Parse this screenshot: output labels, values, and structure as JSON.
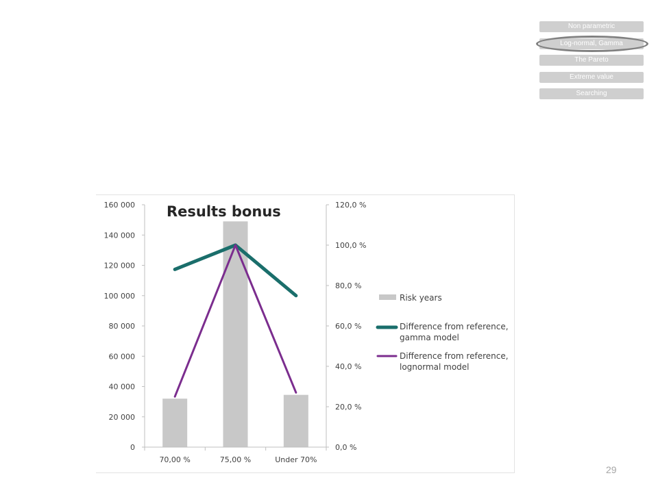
{
  "nav": {
    "items": [
      {
        "label": "Non parametric",
        "active": false
      },
      {
        "label": "Log-normal, Gamma",
        "active": true
      },
      {
        "label": "The Pareto",
        "active": false
      },
      {
        "label": "Extreme value",
        "active": false
      },
      {
        "label": "Searching",
        "active": false
      }
    ]
  },
  "page_number": "29",
  "colors": {
    "bar": "#c8c8c8",
    "gamma": "#1a6e6b",
    "lognormal": "#7b2d8e",
    "nav_bg": "#cfcfcf",
    "nav_ring": "#808080"
  },
  "chart_data": {
    "type": "bar",
    "title": "Results bonus",
    "categories": [
      "70,00 %",
      "75,00 %",
      "Under 70%"
    ],
    "y_left": {
      "ylim": [
        0,
        160000
      ],
      "ticks": [
        0,
        20000,
        40000,
        60000,
        80000,
        100000,
        120000,
        140000,
        160000
      ],
      "tick_labels": [
        "0",
        "20 000",
        "40 000",
        "60 000",
        "80 000",
        "100 000",
        "120 000",
        "140 000",
        "160 000"
      ]
    },
    "y_right": {
      "ylim": [
        0,
        120
      ],
      "ticks": [
        0,
        20,
        40,
        60,
        80,
        100,
        120
      ],
      "tick_labels": [
        "0,0 %",
        "20,0 %",
        "40,0 %",
        "60,0 %",
        "80,0 %",
        "100,0 %",
        "120,0 %"
      ]
    },
    "series": [
      {
        "name": "Risk years",
        "type": "bar",
        "axis": "left",
        "values": [
          32000,
          149000,
          34500
        ]
      },
      {
        "name": "Difference from reference, gamma model",
        "type": "line",
        "axis": "right",
        "values": [
          88,
          100,
          75
        ]
      },
      {
        "name": "Difference from reference, lognormal model",
        "type": "line",
        "axis": "right",
        "values": [
          25,
          100,
          27
        ]
      }
    ],
    "legend": "right",
    "grid": false
  }
}
